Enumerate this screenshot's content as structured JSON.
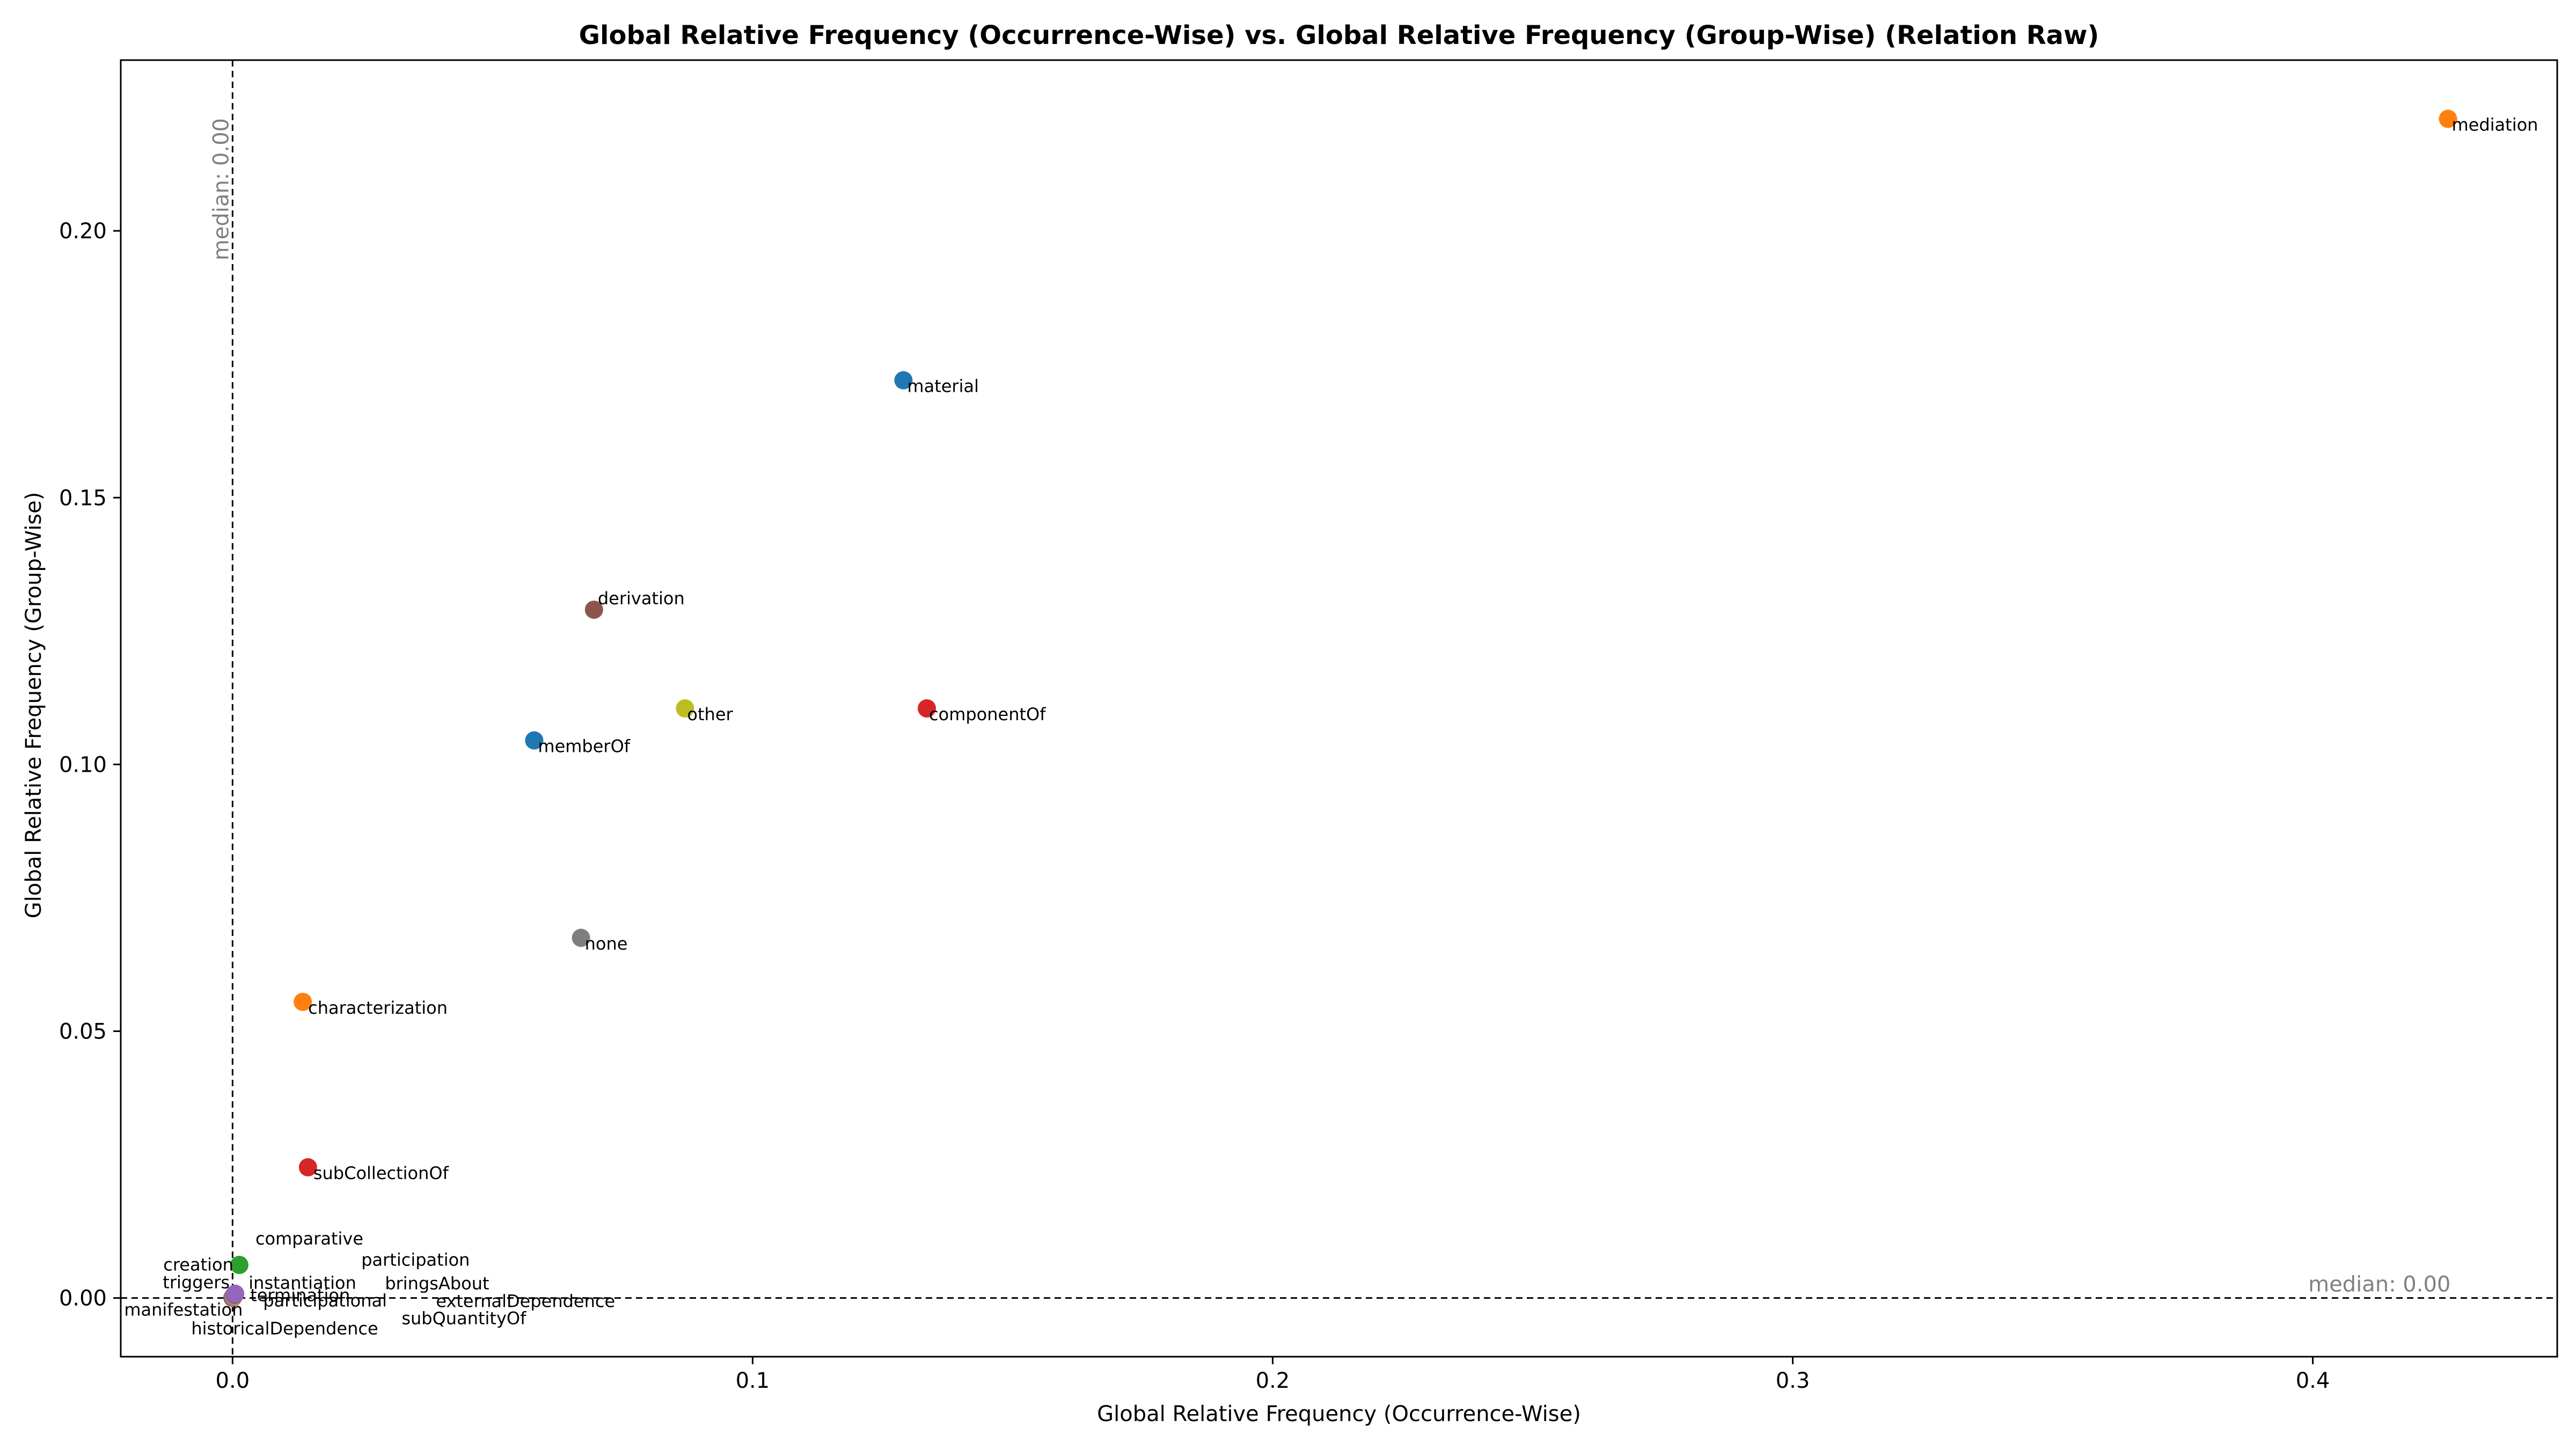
{
  "chart_data": {
    "type": "scatter",
    "title": "Global Relative Frequency (Occurrence-Wise) vs. Global Relative Frequency (Group-Wise) (Relation Raw)",
    "xlabel": "Global Relative Frequency (Occurrence-Wise)",
    "ylabel": "Global Relative Frequency (Group-Wise)",
    "xlim": [
      -0.0215,
      0.447
    ],
    "ylim": [
      -0.011,
      0.232
    ],
    "x_ticks": [
      {
        "value": 0.0,
        "label": "0.0"
      },
      {
        "value": 0.1,
        "label": "0.1"
      },
      {
        "value": 0.2,
        "label": "0.2"
      },
      {
        "value": 0.3,
        "label": "0.3"
      },
      {
        "value": 0.4,
        "label": "0.4"
      }
    ],
    "y_ticks": [
      {
        "value": 0.0,
        "label": "0.00"
      },
      {
        "value": 0.05,
        "label": "0.05"
      },
      {
        "value": 0.1,
        "label": "0.10"
      },
      {
        "value": 0.15,
        "label": "0.15"
      },
      {
        "value": 0.2,
        "label": "0.20"
      }
    ],
    "grid": false,
    "median_x": {
      "value": 0.0,
      "label": "median: 0.00"
    },
    "median_y": {
      "value": 0.0,
      "label": "median: 0.00"
    },
    "points": [
      {
        "label": "mediation",
        "x": 0.426,
        "y": 0.221,
        "color": "#ff7f0e"
      },
      {
        "label": "material",
        "x": 0.129,
        "y": 0.172,
        "color": "#1f77b4"
      },
      {
        "label": "derivation",
        "x": 0.0695,
        "y": 0.129,
        "color": "#8c564b"
      },
      {
        "label": "other",
        "x": 0.087,
        "y": 0.1105,
        "color": "#bcbd22"
      },
      {
        "label": "componentOf",
        "x": 0.1335,
        "y": 0.1105,
        "color": "#d62728"
      },
      {
        "label": "memberOf",
        "x": 0.058,
        "y": 0.1045,
        "color": "#1f77b4"
      },
      {
        "label": "none",
        "x": 0.067,
        "y": 0.0675,
        "color": "#7f7f7f"
      },
      {
        "label": "characterization",
        "x": 0.0135,
        "y": 0.0555,
        "color": "#ff7f0e"
      },
      {
        "label": "subCollectionOf",
        "x": 0.0145,
        "y": 0.0245,
        "color": "#d62728"
      },
      {
        "label": "comparative",
        "x": 0.0013,
        "y": 0.0062,
        "color": "#2ca02c"
      },
      {
        "label": "termination",
        "x": 0.0005,
        "y": 0.0008,
        "color": "#9467bd"
      },
      {
        "label": "participation",
        "x": 0.0004,
        "y": 0.0006,
        "color": "#8c564b"
      },
      {
        "label": "creation",
        "x": 0.0003,
        "y": 0.0005,
        "color": "#e377c2"
      },
      {
        "label": "triggers",
        "x": 0.0002,
        "y": 0.0004,
        "color": "#7f7f7f"
      },
      {
        "label": "instantiation",
        "x": 0.0002,
        "y": 0.0003,
        "color": "#bcbd22"
      },
      {
        "label": "bringsAbout",
        "x": 0.0001,
        "y": 0.0002,
        "color": "#17becf"
      },
      {
        "label": "participational",
        "x": 0.0001,
        "y": 0.0002,
        "color": "#1f77b4"
      },
      {
        "label": "externalDependence",
        "x": 0.0001,
        "y": 0.0001,
        "color": "#ff7f0e"
      },
      {
        "label": "manifestation",
        "x": 0.0,
        "y": 0.0001,
        "color": "#2ca02c"
      },
      {
        "label": "subQuantityOf",
        "x": 0.0,
        "y": 0.0001,
        "color": "#d62728"
      },
      {
        "label": "historicalDependence",
        "x": 0.0,
        "y": 0.0,
        "color": "#e377c2"
      }
    ]
  }
}
